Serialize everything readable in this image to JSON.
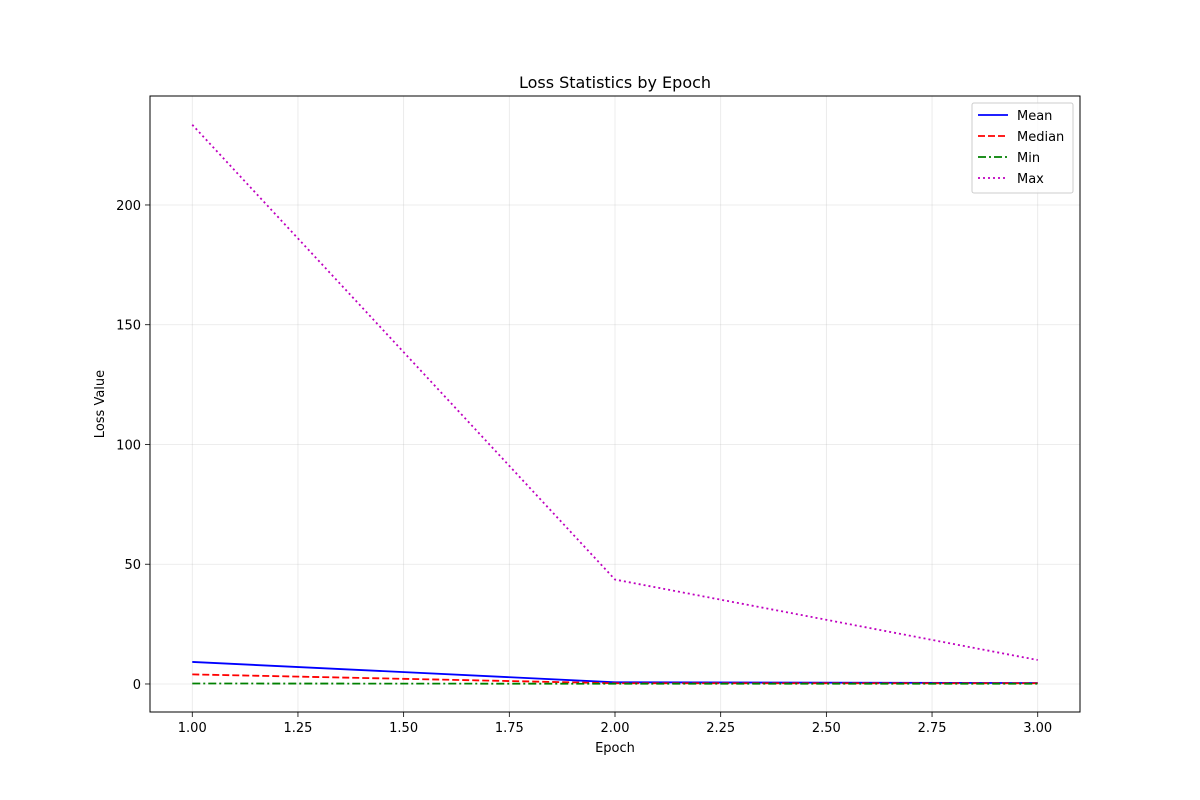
{
  "chart_data": {
    "type": "line",
    "title": "Loss Statistics by Epoch",
    "xlabel": "Epoch",
    "ylabel": "Loss Value",
    "x": [
      1,
      2,
      3
    ],
    "xlim": [
      0.9,
      3.1
    ],
    "ylim": [
      -11.7,
      245.5
    ],
    "xticks": [
      1.0,
      1.25,
      1.5,
      1.75,
      2.0,
      2.25,
      2.5,
      2.75,
      3.0
    ],
    "xtick_labels": [
      "1.00",
      "1.25",
      "1.50",
      "1.75",
      "2.00",
      "2.25",
      "2.50",
      "2.75",
      "3.00"
    ],
    "yticks": [
      0,
      50,
      100,
      150,
      200
    ],
    "ytick_labels": [
      "0",
      "50",
      "100",
      "150",
      "200"
    ],
    "grid": true,
    "legend_position": "top-right",
    "series": [
      {
        "name": "Mean",
        "values": [
          9.2,
          0.7,
          0.4
        ],
        "color": "#0000ff",
        "dash": "solid"
      },
      {
        "name": "Median",
        "values": [
          4.0,
          0.3,
          0.3
        ],
        "color": "#ff0000",
        "dash": "dashed"
      },
      {
        "name": "Min",
        "values": [
          0.2,
          0.1,
          0.1
        ],
        "color": "#008000",
        "dash": "dashdot"
      },
      {
        "name": "Max",
        "values": [
          233.5,
          43.6,
          10.0
        ],
        "color": "#bf00bf",
        "dash": "dotted"
      }
    ]
  }
}
